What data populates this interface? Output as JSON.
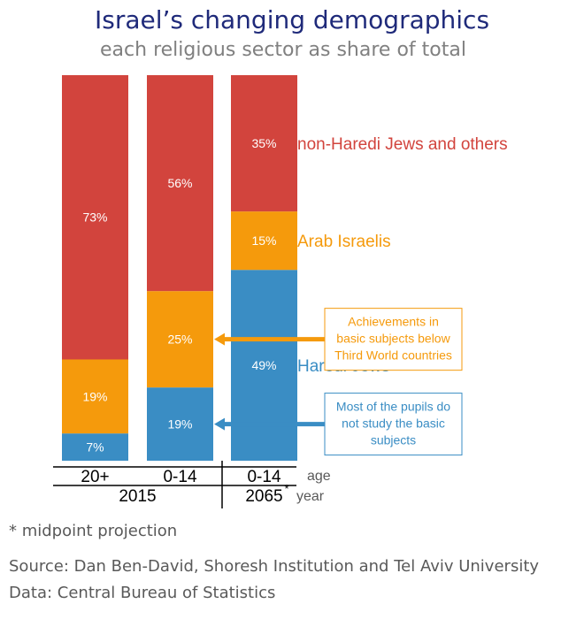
{
  "chart_data": {
    "type": "bar",
    "stacked": true,
    "title": "Israel’s changing demographics",
    "subtitle": "each religious sector as share of total",
    "bars": [
      {
        "age": "20+",
        "haredi": 7,
        "arab": 19,
        "other": 73
      },
      {
        "age": "0-14",
        "haredi": 19,
        "arab": 25,
        "other": 56
      },
      {
        "age": "0-14",
        "haredi": 49,
        "arab": 15,
        "other": 35
      }
    ],
    "value_labels": {
      "haredi": [
        "7%",
        "19%",
        "49%"
      ],
      "arab": [
        "19%",
        "25%",
        "15%"
      ],
      "other": [
        "73%",
        "56%",
        "35%"
      ]
    },
    "years": [
      {
        "label": "2015",
        "bars": [
          0,
          1
        ]
      },
      {
        "label": "2065",
        "superscript": "*",
        "bars": [
          2
        ]
      }
    ],
    "axis_labels": {
      "age": "age",
      "year": "year"
    },
    "series": [
      {
        "key": "other",
        "name": "non-Haredi Jews and others",
        "color": "#d2443d"
      },
      {
        "key": "arab",
        "name": "Arab Israelis",
        "color": "#f59a0c"
      },
      {
        "key": "haredi",
        "name": "Haredi Jews",
        "color": "#3a8dc4"
      }
    ],
    "callouts": [
      {
        "key": "arab",
        "color": "#f59a0c",
        "lines": [
          "Achievements in",
          "basic subjects below",
          "Third World countries"
        ]
      },
      {
        "key": "haredi",
        "color": "#3a8dc4",
        "lines": [
          "Most of the pupils do",
          "not study the basic",
          "subjects"
        ]
      }
    ]
  },
  "footnote": "* midpoint projection",
  "source": "Source: Dan Ben-David, Shoresh Institution and Tel Aviv University",
  "data_source": "Data: Central Bureau of Statistics"
}
